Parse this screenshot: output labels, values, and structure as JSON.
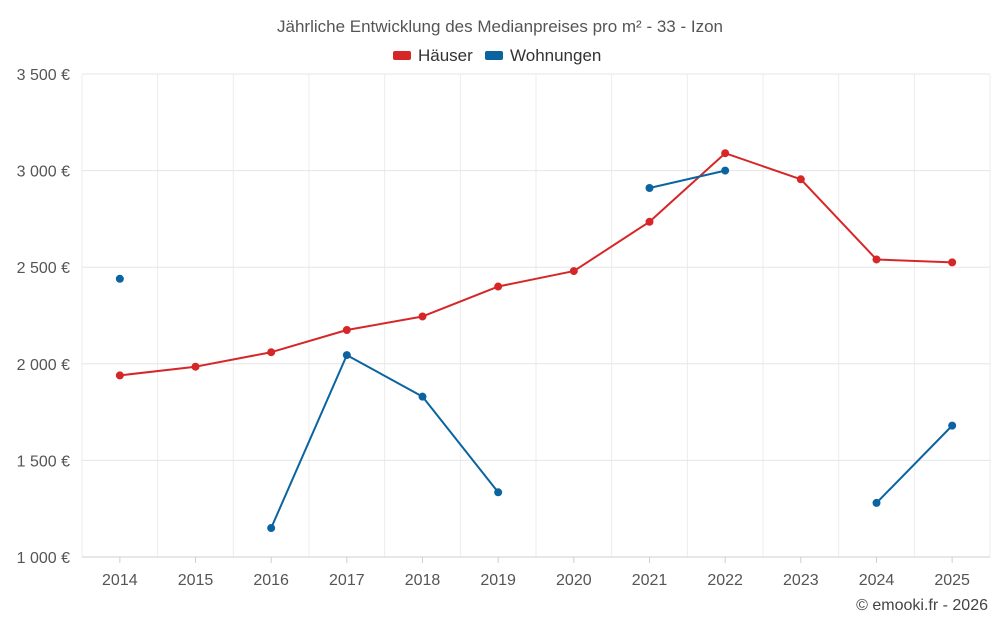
{
  "chart_data": {
    "type": "line",
    "title": "Jährliche Entwicklung des Medianpreises pro m² - 33 - Izon",
    "categories": [
      "2014",
      "2015",
      "2016",
      "2017",
      "2018",
      "2019",
      "2020",
      "2021",
      "2022",
      "2023",
      "2024",
      "2025"
    ],
    "ylim": [
      1000,
      3500
    ],
    "yticks": [
      1000,
      1500,
      2000,
      2500,
      3000,
      3500
    ],
    "ytick_labels": [
      "1 000 €",
      "1 500 €",
      "2 000 €",
      "2 500 €",
      "3 000 €",
      "3 500 €"
    ],
    "grid": true,
    "legend_position": "top-center",
    "series": [
      {
        "name": "Häuser",
        "color": "#d62728",
        "values": [
          1940,
          1985,
          2060,
          2175,
          2245,
          2400,
          2480,
          2735,
          3090,
          2955,
          2540,
          2525
        ]
      },
      {
        "name": "Wohnungen",
        "color": "#0b64a0",
        "values": [
          2440,
          null,
          1150,
          2045,
          1830,
          1335,
          null,
          2910,
          3000,
          null,
          1280,
          1680
        ]
      }
    ],
    "credit": "© emooki.fr - 2026"
  }
}
